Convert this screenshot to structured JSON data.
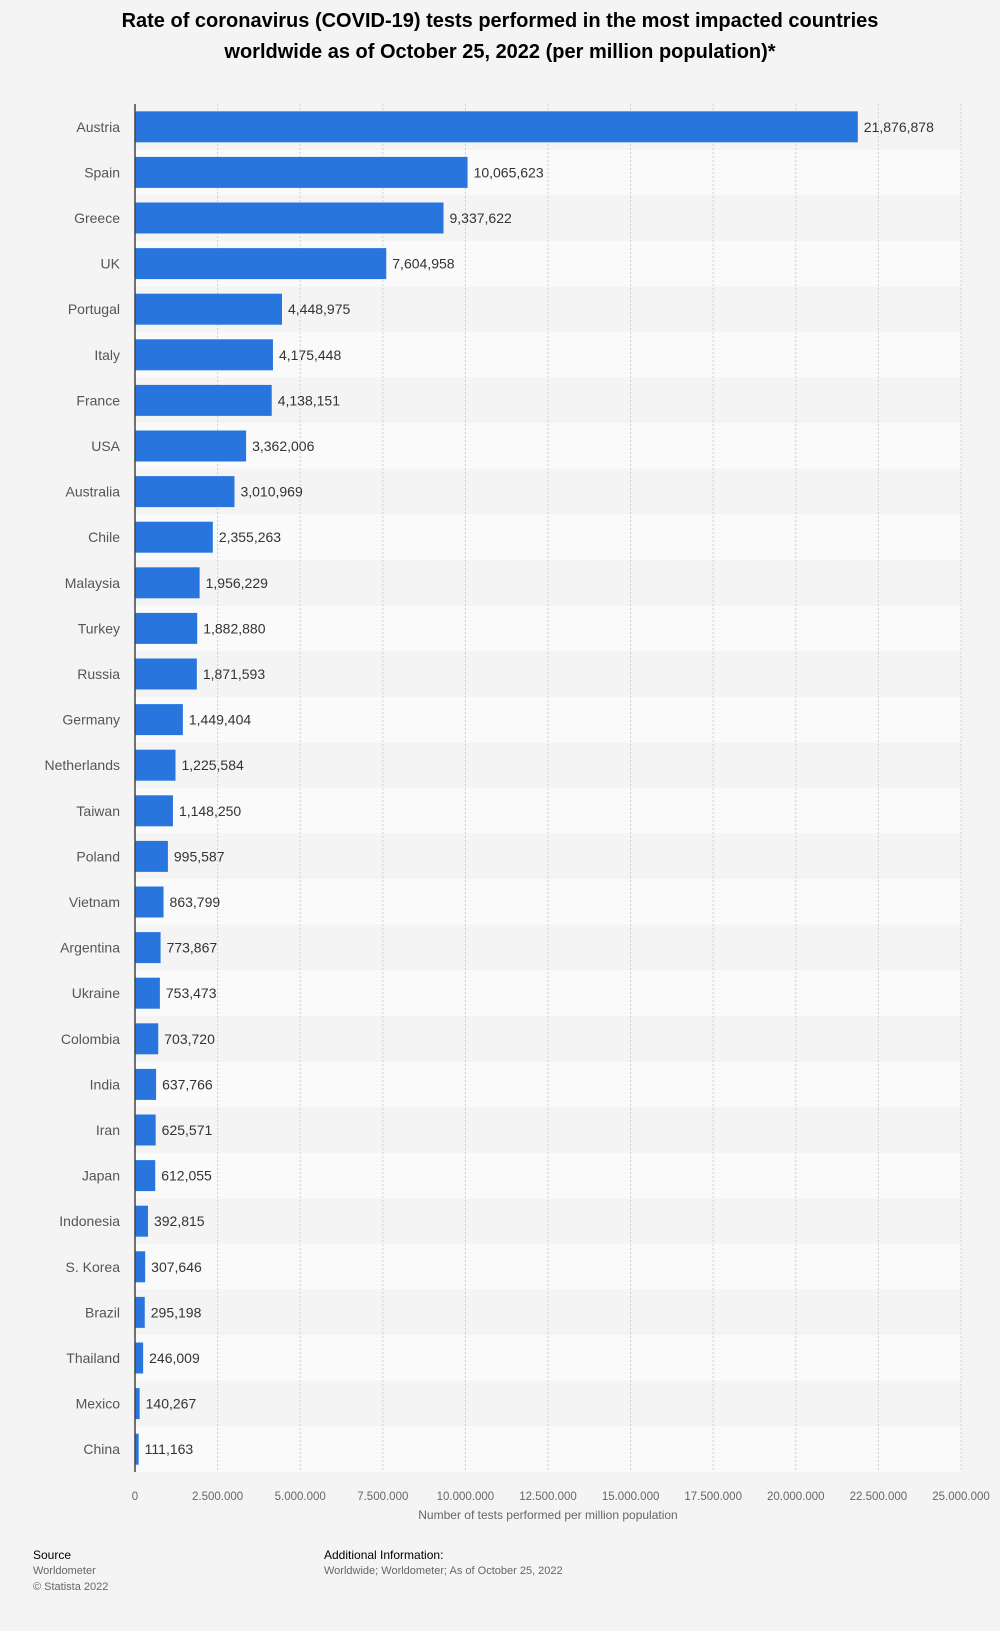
{
  "title_line1": "Rate of coronavirus (COVID-19) tests performed in the most impacted countries",
  "title_line2": "worldwide as of October 25, 2022 (per million population)*",
  "chart_data": {
    "type": "bar",
    "orientation": "horizontal",
    "title": "Rate of coronavirus (COVID-19) tests performed in the most impacted countries worldwide as of October 25, 2022 (per million population)*",
    "xlabel": "Number of tests performed per million population",
    "xlim": [
      0,
      25000000
    ],
    "xticks": [
      0,
      2500000,
      5000000,
      7500000,
      10000000,
      12500000,
      15000000,
      17500000,
      20000000,
      22500000,
      25000000
    ],
    "xtick_labels": [
      "0",
      "2,500,000",
      "5,000,000",
      "7,500,000",
      "10,000,000",
      "12,500,000",
      "15,000,000",
      "17,500,000",
      "20,000,000",
      "22,500,000",
      "25,000,000"
    ],
    "grid": true,
    "bar_color": "#2876dd",
    "categories": [
      "Austria",
      "Spain",
      "Greece",
      "UK",
      "Portugal",
      "Italy",
      "France",
      "USA",
      "Australia",
      "Chile",
      "Malaysia",
      "Turkey",
      "Russia",
      "Germany",
      "Netherlands",
      "Taiwan",
      "Poland",
      "Vietnam",
      "Argentina",
      "Ukraine",
      "Colombia",
      "India",
      "Iran",
      "Japan",
      "Indonesia",
      "S. Korea",
      "Brazil",
      "Thailand",
      "Mexico",
      "China"
    ],
    "values": [
      21876878,
      10065623,
      9337622,
      7604958,
      4448975,
      4175448,
      4138151,
      3362006,
      3010969,
      2355263,
      1956229,
      1882880,
      1871593,
      1449404,
      1225584,
      1148250,
      995587,
      863799,
      773867,
      753473,
      703720,
      637766,
      625571,
      612055,
      392815,
      307646,
      295198,
      246009,
      140267,
      111163
    ],
    "value_labels": [
      "21,876,878",
      "10,065,623",
      "9,337,622",
      "7,604,958",
      "4,448,975",
      "4,175,448",
      "4,138,151",
      "3,362,006",
      "3,010,969",
      "2,355,263",
      "1,956,229",
      "1,882,880",
      "1,871,593",
      "1,449,404",
      "1,225,584",
      "1,148,250",
      "995,587",
      "863,799",
      "773,867",
      "753,473",
      "703,720",
      "637,766",
      "625,571",
      "612,055",
      "392,815",
      "307,646",
      "295,198",
      "246,009",
      "140,267",
      "111,163"
    ]
  },
  "source": {
    "heading": "Source",
    "line1": "Worldometer",
    "line2": "© Statista 2022"
  },
  "additional_info": {
    "heading": "Additional Information:",
    "text": "Worldwide; Worldometer; As of October 25, 2022"
  }
}
